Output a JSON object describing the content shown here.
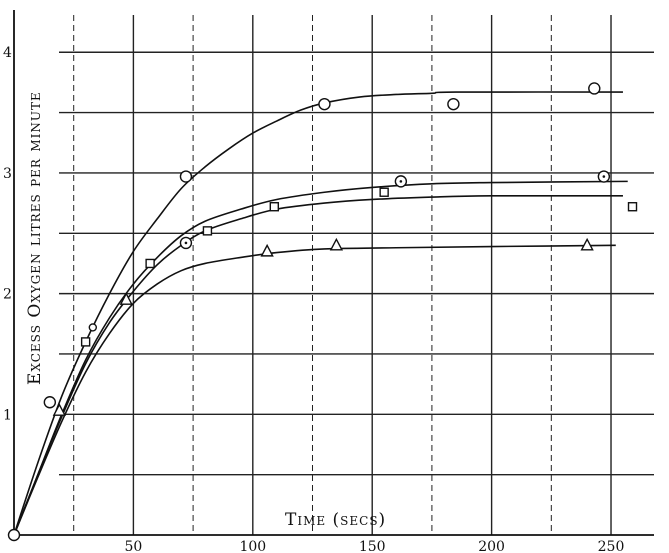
{
  "chart_data": {
    "type": "line",
    "title": "",
    "xlabel": "Time (secs)",
    "ylabel": "Excess Oxygen litres per minute",
    "xlim": [
      0,
      268
    ],
    "ylim": [
      0,
      4.35
    ],
    "x_ticks": [
      50,
      100,
      150,
      200,
      250
    ],
    "y_ticks": [
      1,
      2,
      3,
      4
    ],
    "x_tick_labels": [
      "50",
      "100",
      "150",
      "200",
      "250"
    ],
    "y_tick_labels": [
      "1",
      "2",
      "3",
      "4"
    ],
    "grid": true,
    "series": [
      {
        "marker": "circle",
        "curve": [
          [
            0,
            0
          ],
          [
            10,
            0.6
          ],
          [
            20,
            1.15
          ],
          [
            30,
            1.6
          ],
          [
            40,
            2.0
          ],
          [
            50,
            2.35
          ],
          [
            60,
            2.62
          ],
          [
            70,
            2.87
          ],
          [
            80,
            3.05
          ],
          [
            90,
            3.2
          ],
          [
            100,
            3.33
          ],
          [
            110,
            3.43
          ],
          [
            120,
            3.52
          ],
          [
            130,
            3.58
          ],
          [
            145,
            3.63
          ],
          [
            160,
            3.65
          ],
          [
            175,
            3.66
          ],
          [
            185,
            3.67
          ],
          [
            255,
            3.67
          ]
        ],
        "points": [
          [
            0,
            0
          ],
          [
            15,
            1.1
          ],
          [
            72,
            2.97
          ],
          [
            130,
            3.57
          ],
          [
            184,
            3.57
          ],
          [
            243,
            3.7
          ]
        ]
      },
      {
        "marker": "circle-dot",
        "curve": [
          [
            0,
            0
          ],
          [
            10,
            0.5
          ],
          [
            20,
            1.0
          ],
          [
            30,
            1.45
          ],
          [
            40,
            1.8
          ],
          [
            50,
            2.08
          ],
          [
            60,
            2.3
          ],
          [
            70,
            2.48
          ],
          [
            80,
            2.6
          ],
          [
            95,
            2.7
          ],
          [
            110,
            2.78
          ],
          [
            130,
            2.84
          ],
          [
            150,
            2.88
          ],
          [
            175,
            2.91
          ],
          [
            200,
            2.92
          ],
          [
            257,
            2.93
          ]
        ],
        "points": [
          [
            72,
            2.42
          ],
          [
            162,
            2.93
          ],
          [
            247,
            2.97
          ]
        ]
      },
      {
        "marker": "square",
        "curve": [
          [
            0,
            0
          ],
          [
            10,
            0.5
          ],
          [
            20,
            0.98
          ],
          [
            30,
            1.42
          ],
          [
            40,
            1.76
          ],
          [
            50,
            2.02
          ],
          [
            60,
            2.24
          ],
          [
            70,
            2.4
          ],
          [
            80,
            2.52
          ],
          [
            95,
            2.62
          ],
          [
            110,
            2.7
          ],
          [
            130,
            2.75
          ],
          [
            150,
            2.78
          ],
          [
            175,
            2.8
          ],
          [
            200,
            2.81
          ],
          [
            255,
            2.81
          ]
        ],
        "points": [
          [
            30,
            1.6
          ],
          [
            57,
            2.25
          ],
          [
            81,
            2.52
          ],
          [
            109,
            2.72
          ],
          [
            155,
            2.84
          ],
          [
            259,
            2.72
          ]
        ]
      },
      {
        "marker": "triangle",
        "curve": [
          [
            0,
            0
          ],
          [
            10,
            0.48
          ],
          [
            20,
            0.94
          ],
          [
            30,
            1.35
          ],
          [
            40,
            1.67
          ],
          [
            50,
            1.92
          ],
          [
            60,
            2.08
          ],
          [
            70,
            2.19
          ],
          [
            80,
            2.25
          ],
          [
            95,
            2.3
          ],
          [
            110,
            2.34
          ],
          [
            130,
            2.37
          ],
          [
            160,
            2.38
          ],
          [
            200,
            2.39
          ],
          [
            252,
            2.4
          ]
        ],
        "points": [
          [
            19,
            1.03
          ],
          [
            47,
            1.95
          ],
          [
            106,
            2.35
          ],
          [
            135,
            2.4
          ],
          [
            240,
            2.4
          ]
        ]
      }
    ],
    "extra_points": [
      [
        33,
        1.72
      ]
    ]
  }
}
